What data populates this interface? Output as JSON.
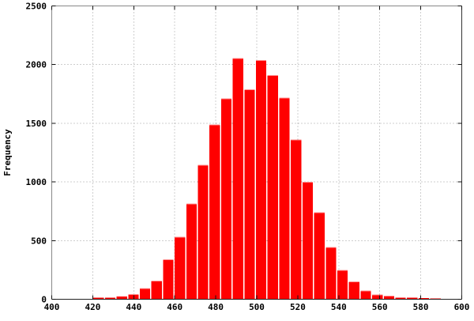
{
  "chart_data": {
    "type": "bar",
    "subtype": "histogram",
    "title": "",
    "xlabel": "",
    "ylabel": "Frequency",
    "xlim": [
      400,
      600
    ],
    "ylim": [
      0,
      2500
    ],
    "x_ticks": [
      400,
      420,
      440,
      460,
      480,
      500,
      520,
      540,
      560,
      580,
      600
    ],
    "y_ticks": [
      0,
      500,
      1000,
      1500,
      2000,
      2500
    ],
    "grid": true,
    "legend": "none",
    "bin_start": 420,
    "bin_width": 5.667,
    "values": [
      15,
      15,
      25,
      45,
      95,
      158,
      342,
      533,
      815,
      1145,
      1490,
      1710,
      2055,
      1790,
      2040,
      1910,
      1720,
      1360,
      1000,
      740,
      445,
      250,
      152,
      73,
      40,
      30,
      13,
      14,
      9,
      7
    ],
    "colors": {
      "bar_fill": "#ff0000",
      "bar_top_edge": "#ff8c8c",
      "grid": "#9e9e9e",
      "border_top": "#888888",
      "border_left": "#888888",
      "border_right": "#333333",
      "border_bottom": "#222222",
      "tick": "#111111",
      "text": "#000000",
      "background": "#ffffff"
    }
  }
}
